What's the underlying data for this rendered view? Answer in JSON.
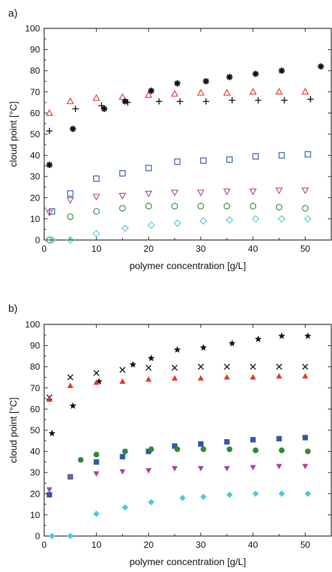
{
  "chart_data": [
    {
      "type": "scatter",
      "panel_label": "a)",
      "xlabel": "polymer concentration [g/L]",
      "ylabel": "cloud point [°C]",
      "xlim": [
        0,
        55
      ],
      "ylim": [
        0,
        100
      ],
      "xticks": [
        0,
        10,
        20,
        30,
        40,
        50
      ],
      "yticks": [
        0,
        10,
        20,
        30,
        40,
        50,
        60,
        70,
        80,
        90,
        100
      ],
      "grid": false,
      "legend": "none",
      "series": [
        {
          "marker": "open-triangle-up",
          "color": "#e8342a",
          "x": [
            1,
            5,
            10,
            15,
            20,
            25,
            30,
            35,
            40,
            45,
            50
          ],
          "y": [
            60,
            65.5,
            67,
            67.5,
            68.5,
            69,
            69.5,
            69.5,
            70,
            70,
            70
          ]
        },
        {
          "marker": "plus",
          "color": "#111111",
          "x": [
            1,
            6,
            11,
            16,
            22,
            26,
            31,
            36,
            41,
            46,
            51
          ],
          "y": [
            51.5,
            62,
            63.5,
            65,
            65.5,
            65.5,
            65.5,
            66,
            66,
            66,
            66.5
          ]
        },
        {
          "marker": "asterisk",
          "color": "#111111",
          "x": [
            1,
            5.5,
            11.5,
            15.5,
            20.5,
            25.5,
            31,
            35.5,
            40.5,
            45.5,
            53
          ],
          "y": [
            35.5,
            52.5,
            62,
            65.5,
            70.5,
            74,
            75,
            77,
            78.5,
            80,
            82
          ]
        },
        {
          "marker": "open-square",
          "color": "#2f58a8",
          "x": [
            1.5,
            5,
            10,
            15,
            20,
            25.5,
            30.5,
            35.5,
            40.5,
            45.5,
            50.5
          ],
          "y": [
            13.5,
            22,
            29,
            31.5,
            34,
            37,
            37.5,
            38,
            39.5,
            40,
            40.5
          ]
        },
        {
          "marker": "open-triangle-down",
          "color": "#b0449c",
          "x": [
            1,
            5,
            10,
            15,
            20,
            25,
            30,
            35,
            40,
            45,
            50
          ],
          "y": [
            13,
            19,
            20.5,
            21,
            22,
            22.5,
            22.5,
            23,
            23,
            23.5,
            23.5
          ]
        },
        {
          "marker": "open-circle",
          "color": "#2e8a3a",
          "x": [
            1,
            5,
            10,
            15,
            20,
            25,
            30,
            35,
            40,
            45,
            50
          ],
          "y": [
            0,
            11,
            13.5,
            15,
            16,
            16,
            16,
            16,
            16,
            15.5,
            15
          ]
        },
        {
          "marker": "open-diamond",
          "color": "#4fc8d8",
          "x": [
            1.5,
            5,
            10,
            15.5,
            20.5,
            25.5,
            30.5,
            35.5,
            40.5,
            45.5,
            50.5
          ],
          "y": [
            0,
            0,
            3,
            5.5,
            7,
            8,
            9,
            9.5,
            10,
            10,
            10
          ]
        }
      ]
    },
    {
      "type": "scatter",
      "panel_label": "b)",
      "xlabel": "polymer concentration [g/L]",
      "ylabel": "cloud point [°C]",
      "xlim": [
        0,
        55
      ],
      "ylim": [
        0,
        100
      ],
      "xticks": [
        0,
        10,
        20,
        30,
        40,
        50
      ],
      "yticks": [
        0,
        10,
        20,
        30,
        40,
        50,
        60,
        70,
        80,
        90,
        100
      ],
      "grid": false,
      "legend": "none",
      "series": [
        {
          "marker": "filled-star",
          "color": "#111111",
          "x": [
            1.5,
            5.5,
            10.5,
            17,
            20.5,
            25.5,
            30.5,
            36,
            41,
            45.5,
            50.5
          ],
          "y": [
            48.5,
            61.5,
            73,
            81,
            84,
            88,
            89,
            91,
            93,
            94.5,
            94.5
          ]
        },
        {
          "marker": "cross",
          "color": "#111111",
          "x": [
            1,
            5,
            10,
            15,
            20,
            25,
            30,
            35,
            40,
            45,
            50
          ],
          "y": [
            65.5,
            75,
            77,
            78.5,
            79.5,
            79.5,
            80,
            80,
            80,
            80,
            80
          ]
        },
        {
          "marker": "filled-triangle-up",
          "color": "#e8342a",
          "x": [
            1,
            5,
            10,
            15,
            20,
            25,
            30,
            35,
            40,
            45,
            50
          ],
          "y": [
            64.5,
            71,
            72.5,
            73,
            74,
            74.5,
            74.5,
            75,
            75,
            75.5,
            75.5
          ]
        },
        {
          "marker": "filled-square",
          "color": "#2f58a8",
          "x": [
            1,
            5,
            10,
            15,
            20,
            25,
            30,
            35,
            40,
            45,
            50
          ],
          "y": [
            19.5,
            28,
            35,
            37.5,
            40,
            42.5,
            43.5,
            44.5,
            45.5,
            46,
            46.5
          ]
        },
        {
          "marker": "filled-circle",
          "color": "#2e8a3a",
          "x": [
            7,
            10,
            15.5,
            20.5,
            25.5,
            30.5,
            35.5,
            40.5,
            45.5,
            50.5
          ],
          "y": [
            36,
            38.5,
            40,
            41,
            41,
            41,
            41,
            40.5,
            40.5,
            40
          ]
        },
        {
          "marker": "filled-triangle-down",
          "color": "#b0449c",
          "x": [
            1,
            5,
            10,
            15,
            20,
            25,
            30,
            35,
            40,
            45,
            50
          ],
          "y": [
            22,
            28,
            29.5,
            30.5,
            31,
            32,
            32,
            32,
            32.5,
            33,
            33
          ]
        },
        {
          "marker": "filled-diamond",
          "color": "#4fc8d8",
          "x": [
            1.5,
            5,
            10,
            15.5,
            20.5,
            26.5,
            30.5,
            35.5,
            40.5,
            45.5,
            50.5
          ],
          "y": [
            0,
            0,
            10.5,
            13.5,
            16,
            18,
            18.5,
            19.5,
            20,
            20,
            20
          ]
        }
      ]
    }
  ]
}
